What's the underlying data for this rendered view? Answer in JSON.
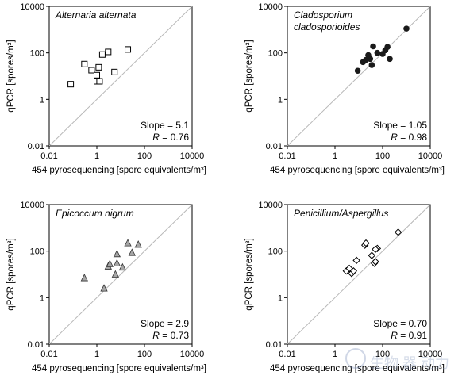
{
  "chart_data": [
    {
      "type": "scatter",
      "title": "Alternaria alternata",
      "xlabel": "454 pyrosequencing [spore equivalents/m³]",
      "ylabel": "qPCR [spores/m³]",
      "x_scale": "log",
      "y_scale": "log",
      "xlim": [
        0.01,
        10000
      ],
      "ylim": [
        0.01,
        10000
      ],
      "x_ticks": [
        "0.01",
        "1",
        "100",
        "10000"
      ],
      "y_ticks": [
        "0.01",
        "1",
        "100",
        "10000"
      ],
      "reference_line": "1:1",
      "marker": "open-square",
      "slope_text": "Slope = 5.1",
      "r_label": "R",
      "r_value": "= 0.76",
      "points": [
        {
          "x": 0.08,
          "y": 4.5
        },
        {
          "x": 0.3,
          "y": 33
        },
        {
          "x": 0.6,
          "y": 18
        },
        {
          "x": 1.0,
          "y": 11
        },
        {
          "x": 1.0,
          "y": 6
        },
        {
          "x": 1.2,
          "y": 24
        },
        {
          "x": 1.3,
          "y": 6
        },
        {
          "x": 1.7,
          "y": 85
        },
        {
          "x": 3.0,
          "y": 110
        },
        {
          "x": 5.5,
          "y": 15
        },
        {
          "x": 20,
          "y": 140
        }
      ]
    },
    {
      "type": "scatter",
      "title": "Cladosporium cladosporioides",
      "xlabel": "454 pyrosequencing [spore equivalents/m³]",
      "ylabel": "qPCR [spores/m³]",
      "x_scale": "log",
      "y_scale": "log",
      "xlim": [
        0.01,
        10000
      ],
      "ylim": [
        0.01,
        10000
      ],
      "x_ticks": [
        "0.01",
        "1",
        "100",
        "10000"
      ],
      "y_ticks": [
        "0.01",
        "1",
        "100",
        "10000"
      ],
      "reference_line": "1:1",
      "marker": "filled-circle",
      "slope_text": "Slope = 1.05",
      "r_label": "R",
      "r_value": "= 0.98",
      "points": [
        {
          "x": 9,
          "y": 17
        },
        {
          "x": 15,
          "y": 40
        },
        {
          "x": 20,
          "y": 50
        },
        {
          "x": 25,
          "y": 80
        },
        {
          "x": 30,
          "y": 55
        },
        {
          "x": 35,
          "y": 30
        },
        {
          "x": 40,
          "y": 190
        },
        {
          "x": 60,
          "y": 100
        },
        {
          "x": 100,
          "y": 90
        },
        {
          "x": 130,
          "y": 130
        },
        {
          "x": 160,
          "y": 180
        },
        {
          "x": 200,
          "y": 55
        },
        {
          "x": 1000,
          "y": 1100
        }
      ]
    },
    {
      "type": "scatter",
      "title": "Epicoccum nigrum",
      "xlabel": "454 pyrosequencing [spore equivalents/m³]",
      "ylabel": "qPCR [spores/m³]",
      "x_scale": "log",
      "y_scale": "log",
      "xlim": [
        0.01,
        10000
      ],
      "ylim": [
        0.01,
        10000
      ],
      "x_ticks": [
        "0.01",
        "1",
        "100",
        "10000"
      ],
      "y_ticks": [
        "0.01",
        "1",
        "100",
        "10000"
      ],
      "reference_line": "1:1",
      "marker": "filled-triangle",
      "slope_text": "Slope = 2.9",
      "r_label": "R",
      "r_value": "= 0.73",
      "points": [
        {
          "x": 0.3,
          "y": 7
        },
        {
          "x": 2.0,
          "y": 2.5
        },
        {
          "x": 3.0,
          "y": 22
        },
        {
          "x": 3.5,
          "y": 28
        },
        {
          "x": 6,
          "y": 10
        },
        {
          "x": 7,
          "y": 30
        },
        {
          "x": 7,
          "y": 75
        },
        {
          "x": 12,
          "y": 20
        },
        {
          "x": 20,
          "y": 220
        },
        {
          "x": 30,
          "y": 85
        },
        {
          "x": 55,
          "y": 190
        }
      ]
    },
    {
      "type": "scatter",
      "title": "Penicillium/Aspergillus",
      "xlabel": "454 pyrosequencing [spore equivalents/m³]",
      "ylabel": "qPCR [spores/m³]",
      "x_scale": "log",
      "y_scale": "log",
      "xlim": [
        0.01,
        10000
      ],
      "ylim": [
        0.01,
        10000
      ],
      "x_ticks": [
        "0.01",
        "1",
        "100",
        "10000"
      ],
      "y_ticks": [
        "0.01",
        "1",
        "100",
        "10000"
      ],
      "reference_line": "1:1",
      "marker": "open-diamond",
      "slope_text": "Slope = 0.70",
      "r_label": "R",
      "r_value": "= 0.91",
      "points": [
        {
          "x": 3,
          "y": 14
        },
        {
          "x": 4,
          "y": 18
        },
        {
          "x": 5,
          "y": 11
        },
        {
          "x": 6,
          "y": 14
        },
        {
          "x": 8,
          "y": 40
        },
        {
          "x": 18,
          "y": 180
        },
        {
          "x": 20,
          "y": 220
        },
        {
          "x": 35,
          "y": 65
        },
        {
          "x": 45,
          "y": 30
        },
        {
          "x": 50,
          "y": 35
        },
        {
          "x": 60,
          "y": 130
        },
        {
          "x": 50,
          "y": 120
        },
        {
          "x": 450,
          "y": 650
        }
      ]
    }
  ],
  "watermark_text": "生物 器 动力"
}
